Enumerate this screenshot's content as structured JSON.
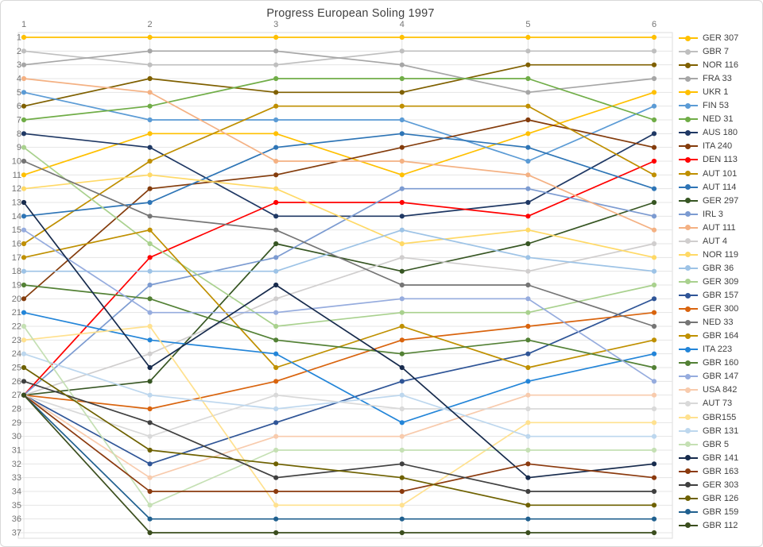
{
  "title": "Progress European Soling 1997",
  "chart_data": {
    "type": "line",
    "subtype": "bump-rank-progression",
    "title": "Progress European Soling 1997",
    "xlabel": "",
    "ylabel": "",
    "x_categories": [
      "1",
      "2",
      "3",
      "4",
      "5",
      "6"
    ],
    "x_axis_position": "top",
    "y_axis": {
      "min": 1,
      "max": 37,
      "inverted": true,
      "tick_step": 1
    },
    "grid": true,
    "legend_position": "right",
    "axis_tick_color": "#757575",
    "grid_color": "#e4e4e4",
    "series": [
      {
        "name": "GER 307",
        "color": "#FFC000",
        "ranks": [
          1,
          1,
          1,
          1,
          1,
          1
        ]
      },
      {
        "name": "GBR 7",
        "color": "#BFBFBF",
        "ranks": [
          2,
          3,
          3,
          2,
          2,
          2
        ]
      },
      {
        "name": "NOR 116",
        "color": "#7F6000",
        "ranks": [
          6,
          4,
          5,
          5,
          3,
          3
        ]
      },
      {
        "name": "FRA 33",
        "color": "#A6A6A6",
        "ranks": [
          3,
          2,
          2,
          3,
          5,
          4
        ]
      },
      {
        "name": "UKR 1",
        "color": "#FFC000",
        "ranks": [
          11,
          8,
          8,
          11,
          8,
          5
        ]
      },
      {
        "name": "FIN 53",
        "color": "#5B9BD5",
        "ranks": [
          5,
          7,
          7,
          7,
          10,
          6
        ]
      },
      {
        "name": "NED 31",
        "color": "#70AD47",
        "ranks": [
          7,
          6,
          4,
          4,
          4,
          7
        ]
      },
      {
        "name": "AUS 180",
        "color": "#1F3864",
        "ranks": [
          8,
          9,
          14,
          14,
          13,
          8
        ]
      },
      {
        "name": "ITA 240",
        "color": "#843C0C",
        "ranks": [
          20,
          12,
          11,
          9,
          7,
          9
        ]
      },
      {
        "name": "DEN 113",
        "color": "#FF0000",
        "ranks": [
          27,
          17,
          13,
          13,
          14,
          10
        ]
      },
      {
        "name": "AUT 101",
        "color": "#BF8F00",
        "ranks": [
          16,
          10,
          6,
          6,
          6,
          11
        ]
      },
      {
        "name": "AUT 114",
        "color": "#2E75B6",
        "ranks": [
          14,
          13,
          9,
          8,
          9,
          12
        ]
      },
      {
        "name": "GER 297",
        "color": "#375623",
        "ranks": [
          27,
          26,
          16,
          18,
          16,
          13
        ]
      },
      {
        "name": "IRL 3",
        "color": "#7C9BD1",
        "ranks": [
          27,
          19,
          17,
          12,
          12,
          14
        ]
      },
      {
        "name": "AUT 111",
        "color": "#F4B183",
        "ranks": [
          4,
          5,
          10,
          10,
          11,
          15
        ]
      },
      {
        "name": "AUT 4",
        "color": "#D0CECE",
        "ranks": [
          27,
          24,
          20,
          17,
          18,
          16
        ]
      },
      {
        "name": "NOR 119",
        "color": "#FFD966",
        "ranks": [
          12,
          11,
          12,
          16,
          15,
          17
        ]
      },
      {
        "name": "GBR 36",
        "color": "#9DC3E6",
        "ranks": [
          18,
          18,
          18,
          15,
          17,
          18
        ]
      },
      {
        "name": "GER 309",
        "color": "#A9D18E",
        "ranks": [
          9,
          16,
          22,
          21,
          21,
          19
        ]
      },
      {
        "name": "GBR 157",
        "color": "#2F5597",
        "ranks": [
          27,
          32,
          29,
          26,
          24,
          20
        ]
      },
      {
        "name": "GER 300",
        "color": "#D9640E",
        "ranks": [
          27,
          28,
          26,
          23,
          22,
          21
        ]
      },
      {
        "name": "NED 33",
        "color": "#757575",
        "ranks": [
          10,
          14,
          15,
          19,
          19,
          22
        ]
      },
      {
        "name": "GBR 164",
        "color": "#BF9000",
        "ranks": [
          17,
          15,
          25,
          22,
          25,
          23
        ]
      },
      {
        "name": "ITA 223",
        "color": "#2385D8",
        "ranks": [
          21,
          23,
          24,
          29,
          26,
          24
        ]
      },
      {
        "name": "GBR 160",
        "color": "#538135",
        "ranks": [
          19,
          20,
          23,
          24,
          23,
          25
        ]
      },
      {
        "name": "GBR 147",
        "color": "#96ACDE",
        "ranks": [
          15,
          21,
          21,
          20,
          20,
          26
        ]
      },
      {
        "name": "USA 842",
        "color": "#F8CBAD",
        "ranks": [
          27,
          33,
          30,
          30,
          27,
          27
        ]
      },
      {
        "name": "AUT 73",
        "color": "#D9D9D9",
        "ranks": [
          27,
          30,
          27,
          28,
          28,
          28
        ]
      },
      {
        "name": "GBR155",
        "color": "#FFE18F",
        "ranks": [
          23,
          22,
          35,
          35,
          29,
          29
        ]
      },
      {
        "name": "GBR 131",
        "color": "#BDD7EE",
        "ranks": [
          24,
          27,
          28,
          27,
          30,
          30
        ]
      },
      {
        "name": "GBR 5",
        "color": "#C5E0B4",
        "ranks": [
          22,
          35,
          31,
          31,
          31,
          31
        ]
      },
      {
        "name": "GBR 141",
        "color": "#172B4D",
        "ranks": [
          13,
          25,
          19,
          25,
          33,
          32
        ]
      },
      {
        "name": "GBR 163",
        "color": "#8B3A0E",
        "ranks": [
          27,
          34,
          34,
          34,
          32,
          33
        ]
      },
      {
        "name": "GER 303",
        "color": "#404040",
        "ranks": [
          26,
          29,
          33,
          32,
          34,
          34
        ]
      },
      {
        "name": "GBR 126",
        "color": "#6E6100",
        "ranks": [
          25,
          31,
          32,
          33,
          35,
          35
        ]
      },
      {
        "name": "GBR 159",
        "color": "#20608F",
        "ranks": [
          27,
          36,
          36,
          36,
          36,
          36
        ]
      },
      {
        "name": "GBR 112",
        "color": "#3B4E1E",
        "ranks": [
          27,
          37,
          37,
          37,
          37,
          37
        ]
      }
    ]
  }
}
